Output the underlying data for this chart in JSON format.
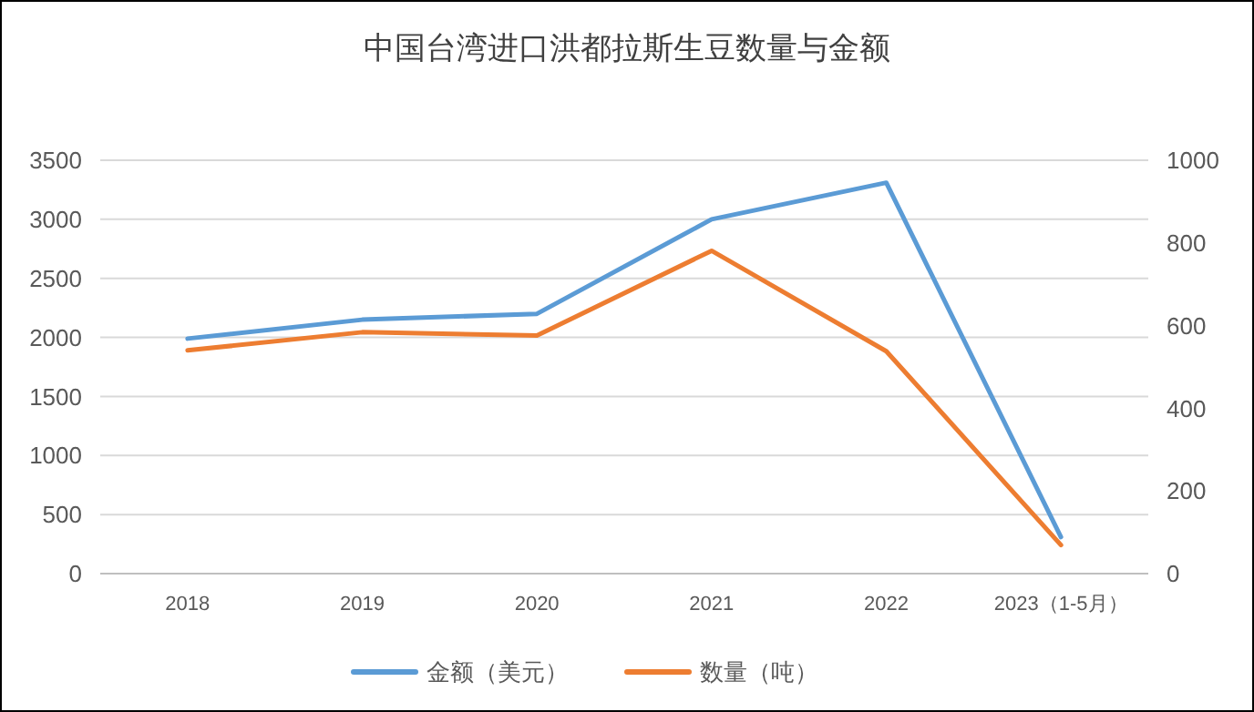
{
  "chart_data": {
    "type": "line",
    "title": "中国台湾进口洪都拉斯生豆数量与金额",
    "categories": [
      "2018",
      "2019",
      "2020",
      "2021",
      "2022",
      "2023（1-5月）"
    ],
    "series": [
      {
        "name": "金额（美元）",
        "color": "#5b9bd5",
        "values": [
          1990,
          2150,
          2200,
          3000,
          3310,
          310
        ]
      },
      {
        "name": "数量（吨）",
        "color": "#ed7d31",
        "axis": "y2",
        "values": [
          540,
          584,
          576,
          781,
          538,
          69
        ]
      }
    ],
    "ylim": [
      0,
      3500
    ],
    "yticks": [
      0,
      500,
      1000,
      1500,
      2000,
      2500,
      3000,
      3500
    ],
    "y2lim": [
      0,
      1000
    ],
    "y2ticks": [
      0,
      200,
      400,
      600,
      800,
      1000
    ],
    "grid": "y",
    "legend": "bottom",
    "marker": "none",
    "line_style": "solid"
  }
}
